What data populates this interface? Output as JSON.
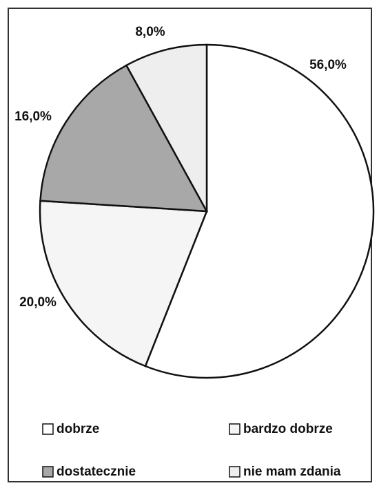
{
  "chart_data": {
    "type": "pie",
    "categories": [
      "dobrze",
      "bardzo dobrze",
      "dostatecznie",
      "nie mam zdania"
    ],
    "values": [
      56,
      20,
      16,
      8
    ],
    "value_labels": [
      "56,0%",
      "20,0%",
      "16,0%",
      "8,0%"
    ],
    "colors": [
      "#ffffff",
      "#f5f5f5",
      "#a8a8a8",
      "#eeeeee"
    ],
    "legend": "bottom"
  }
}
